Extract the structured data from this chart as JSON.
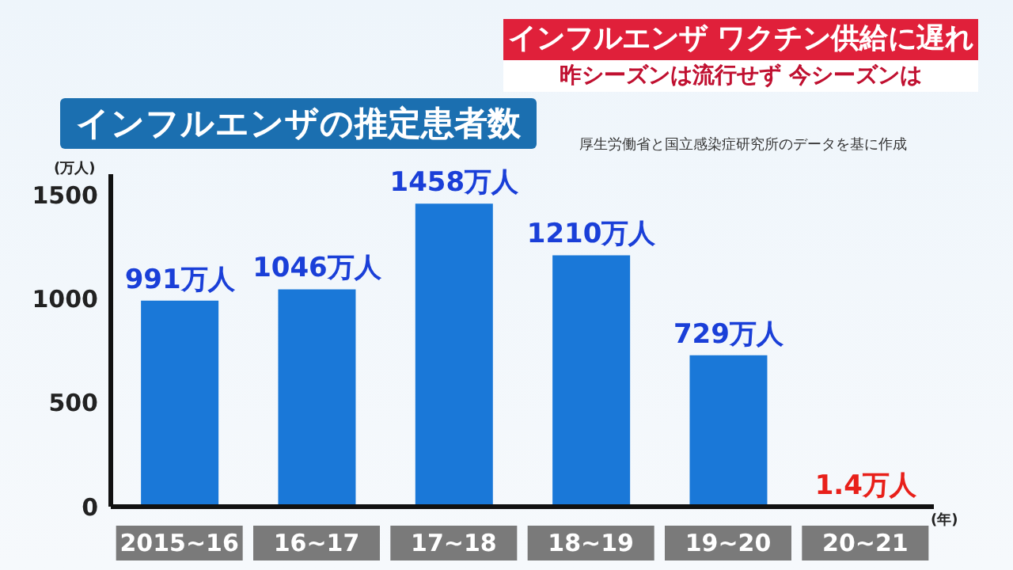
{
  "chart_data": {
    "type": "bar",
    "title": "インフルエンザの推定患者数",
    "annotations": [
      "インフルエンザ ワクチン供給に遅れ",
      "昨シーズンは流行せず 今シーズンは",
      "厚生労働省と国立感染症研究所のデータを基に作成"
    ],
    "ylabel": "(万人)",
    "xlabel": "(年)",
    "categories": [
      "2015~16",
      "16~17",
      "17~18",
      "18~19",
      "19~20",
      "20~21"
    ],
    "values": [
      991,
      1046,
      1458,
      1210,
      729,
      1.4
    ],
    "colors": [
      "#1a78d8",
      "#1a78d8",
      "#1a78d8",
      "#1a78d8",
      "#1a78d8",
      "#e8201a"
    ],
    "value_labels": [
      "991万人",
      "1046万人",
      "1458万人",
      "1210万人",
      "729万人",
      "1.4万人"
    ],
    "ylim": [
      0,
      1600
    ],
    "yticks": [
      0,
      500,
      1000,
      1500
    ],
    "grid": false,
    "legend": false
  }
}
